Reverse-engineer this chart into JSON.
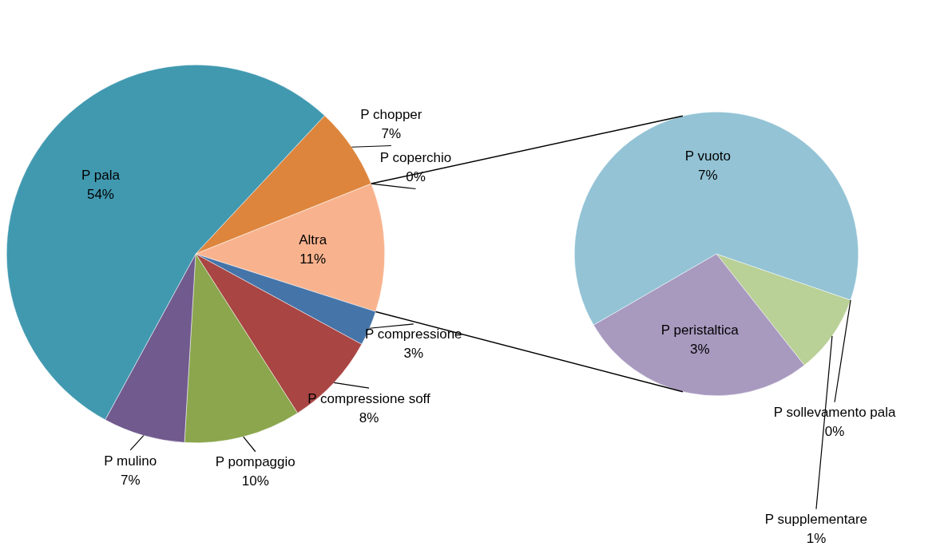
{
  "chart_data": [
    {
      "type": "pie",
      "categories": [
        "P chopper",
        "P coperchio",
        "Altra",
        "P compressione",
        "P compressione soff",
        "P pompaggio",
        "P mulino",
        "P pala"
      ],
      "values": [
        7,
        0,
        11,
        3,
        8,
        10,
        7,
        54
      ],
      "value_labels": [
        "7%",
        "0%",
        "11%",
        "3%",
        "8%",
        "10%",
        "7%",
        "54%"
      ],
      "colors": [
        "#dd853d",
        "#9cb5e0",
        "#f8b38e",
        "#4574a8",
        "#a94543",
        "#8ba64d",
        "#715a8e",
        "#4199b0"
      ]
    },
    {
      "type": "pie",
      "categories": [
        "P sollevamento pala",
        "P supplementare",
        "P peristaltica",
        "P vuoto"
      ],
      "values": [
        0,
        1,
        3,
        7
      ],
      "value_labels": [
        "0%",
        "1%",
        "3%",
        "7%"
      ],
      "colors": [
        "#d69594",
        "#b9d097",
        "#a899bf",
        "#93c3d5"
      ]
    }
  ]
}
